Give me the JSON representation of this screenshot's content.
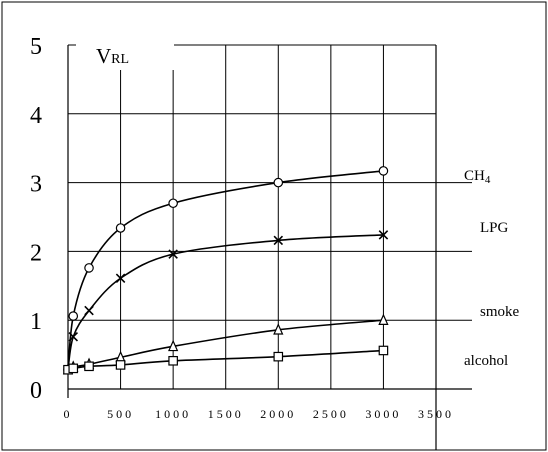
{
  "chart_data": {
    "type": "line",
    "ylabel_main": "V",
    "ylabel_sub": "RL",
    "ylim": [
      0,
      5
    ],
    "xlim": [
      0,
      3500
    ],
    "yticks": [
      "0",
      "1",
      "2",
      "3",
      "4",
      "5"
    ],
    "xticks": [
      "0",
      "500",
      "1000",
      "1500",
      "2000",
      "2500",
      "3000",
      "3500"
    ],
    "grid": true,
    "series": [
      {
        "name": "CH4",
        "label_main": "CH",
        "label_sub": "4",
        "marker": "circle",
        "x": [
          0,
          50,
          200,
          500,
          1000,
          2000,
          3000
        ],
        "y": [
          0.28,
          1.06,
          1.76,
          2.34,
          2.7,
          3.0,
          3.17
        ]
      },
      {
        "name": "LPG",
        "label_main": "LPG",
        "label_sub": "",
        "marker": "x",
        "x": [
          0,
          50,
          200,
          500,
          1000,
          2000,
          3000
        ],
        "y": [
          0.28,
          0.76,
          1.14,
          1.61,
          1.96,
          2.16,
          2.24
        ]
      },
      {
        "name": "smoke",
        "label_main": "smoke",
        "label_sub": "",
        "marker": "triangle",
        "x": [
          0,
          50,
          200,
          500,
          1000,
          2000,
          3000
        ],
        "y": [
          0.28,
          0.32,
          0.36,
          0.46,
          0.62,
          0.86,
          1.0
        ]
      },
      {
        "name": "alcohol",
        "label_main": "alcohol",
        "label_sub": "",
        "marker": "square",
        "x": [
          0,
          50,
          200,
          500,
          1000,
          2000,
          3000
        ],
        "y": [
          0.28,
          0.3,
          0.33,
          0.35,
          0.41,
          0.47,
          0.56
        ]
      }
    ]
  }
}
